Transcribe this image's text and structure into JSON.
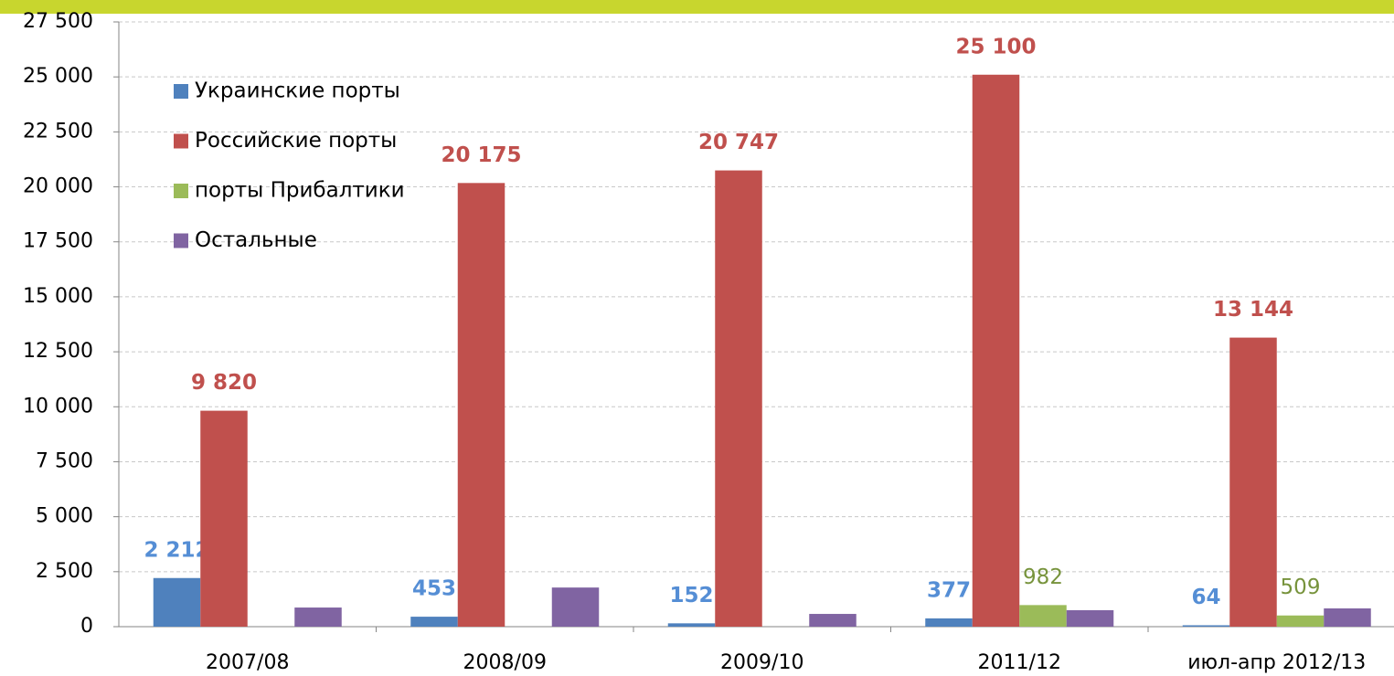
{
  "chart_data": {
    "type": "bar",
    "categories": [
      "2007/08",
      "2008/09",
      "2009/10",
      "2011/12",
      "июл-апр 2012/13"
    ],
    "series": [
      {
        "name": "Украинские порты",
        "color": "#4f81bd",
        "label_color": "#558ed5",
        "label_bold": true,
        "values": [
          2212,
          453,
          152,
          377,
          64
        ],
        "value_labels": [
          "2 212",
          "453",
          "152",
          "377",
          "64"
        ]
      },
      {
        "name": "Российские порты",
        "color": "#c0504d",
        "label_color": "#c0504d",
        "label_bold": true,
        "values": [
          9820,
          20175,
          20747,
          25100,
          13144
        ],
        "value_labels": [
          "9 820",
          "20 175",
          "20 747",
          "25 100",
          "13 144"
        ]
      },
      {
        "name": "порты Прибалтики",
        "color": "#9bbb59",
        "label_color": "#77933c",
        "label_bold": false,
        "values": [
          null,
          null,
          null,
          982,
          509
        ],
        "value_labels": [
          null,
          null,
          null,
          "982",
          "509"
        ]
      },
      {
        "name": "Остальные",
        "color": "#8064a2",
        "values": [
          870,
          1780,
          580,
          750,
          830
        ]
      }
    ],
    "ylim": [
      0,
      27500
    ],
    "yticks": [
      0,
      {
        "value": 2500,
        "label": "2 500"
      },
      {
        "value": 5000,
        "label": "5 000"
      },
      {
        "value": 7500,
        "label": "7 500"
      },
      {
        "value": 10000,
        "label": "10 000"
      },
      {
        "value": 12500,
        "label": "12 500"
      },
      {
        "value": 15000,
        "label": "15 000"
      },
      {
        "value": 17500,
        "label": "17 500"
      },
      {
        "value": 20000,
        "label": "20 000"
      },
      {
        "value": 22500,
        "label": "22 500"
      },
      {
        "value": 25000,
        "label": "25 000"
      },
      {
        "value": 27500,
        "label": "27 500"
      }
    ],
    "grid": true,
    "legend": "top-left"
  }
}
